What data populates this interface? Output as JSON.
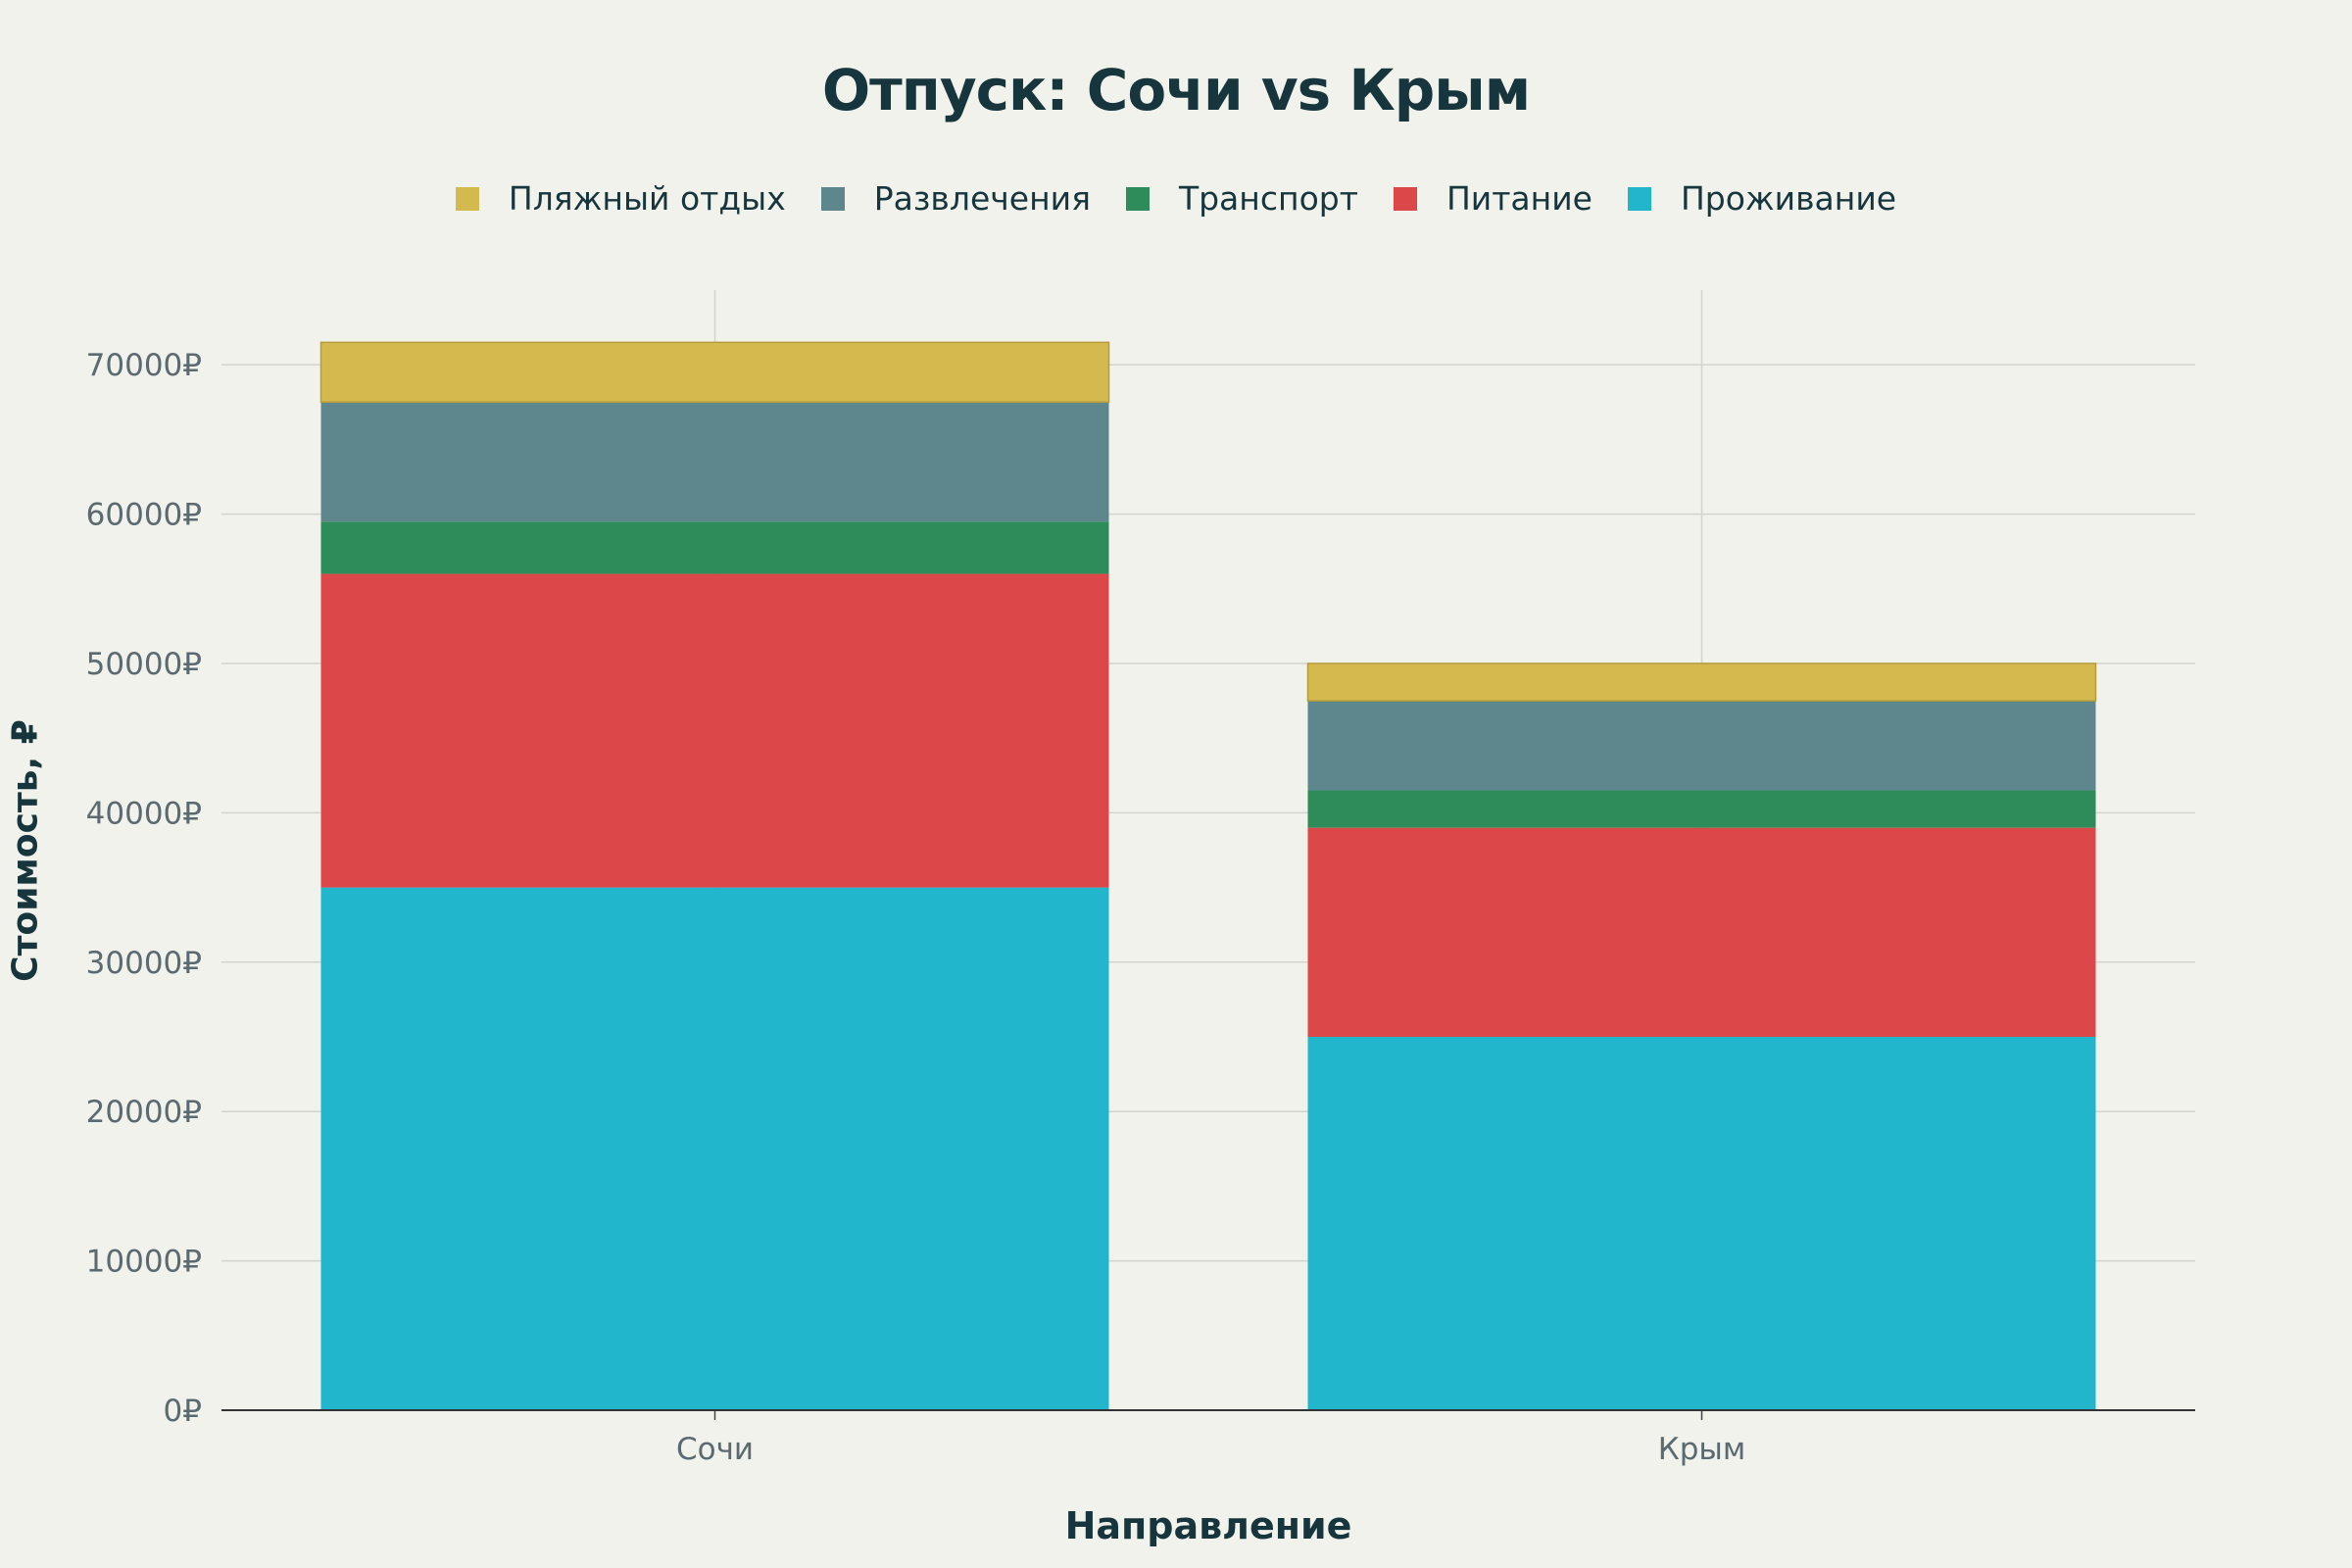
{
  "chart_data": {
    "type": "bar",
    "stacked": true,
    "title": "Отпуск: Сочи vs Крым",
    "xlabel": "Направление",
    "ylabel": "Стоимость, ₽",
    "categories": [
      "Сочи",
      "Крым"
    ],
    "ylim": [
      0,
      75000
    ],
    "yticks": [
      {
        "value": 0,
        "label": "0₽"
      },
      {
        "value": 10000,
        "label": "10000₽"
      },
      {
        "value": 20000,
        "label": "20000₽"
      },
      {
        "value": 30000,
        "label": "30000₽"
      },
      {
        "value": 40000,
        "label": "40000₽"
      },
      {
        "value": 50000,
        "label": "50000₽"
      },
      {
        "value": 60000,
        "label": "60000₽"
      },
      {
        "value": 70000,
        "label": "70000₽"
      }
    ],
    "grid": true,
    "legend_position": "top-center",
    "legend_order": [
      "Пляжный отдых",
      "Развлечения",
      "Транспорт",
      "Питание",
      "Проживание"
    ],
    "series": [
      {
        "name": "Проживание",
        "color": "#21b6cc",
        "values": [
          35000,
          25000
        ]
      },
      {
        "name": "Питание",
        "color": "#dc4749",
        "values": [
          21000,
          14000
        ]
      },
      {
        "name": "Транспорт",
        "color": "#2e8b5a",
        "values": [
          3500,
          2500
        ]
      },
      {
        "name": "Развлечения",
        "color": "#5e878d",
        "values": [
          8000,
          6000
        ]
      },
      {
        "name": "Пляжный отдых",
        "color": "#d4b94e",
        "values": [
          4000,
          2500
        ]
      }
    ]
  }
}
